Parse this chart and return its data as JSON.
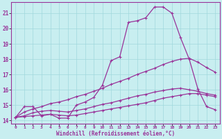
{
  "xlabel": "Windchill (Refroidissement éolien,°C)",
  "x_ticks": [
    0,
    1,
    2,
    3,
    4,
    5,
    6,
    7,
    8,
    9,
    10,
    11,
    12,
    13,
    14,
    15,
    16,
    17,
    18,
    19,
    20,
    21,
    22,
    23
  ],
  "ylim": [
    13.8,
    21.7
  ],
  "xlim": [
    -0.5,
    23.5
  ],
  "y_ticks": [
    14,
    15,
    16,
    17,
    18,
    19,
    20,
    21
  ],
  "background_color": "#c8eef0",
  "grid_color": "#a0d8dc",
  "line_color": "#993399",
  "line1_x": [
    0,
    1,
    2,
    3,
    4,
    5,
    6,
    7,
    8,
    9,
    10,
    11,
    12,
    13,
    14,
    15,
    16,
    17,
    18,
    19,
    20,
    21,
    22,
    23
  ],
  "line1_y": [
    14.2,
    14.9,
    14.9,
    14.3,
    14.4,
    14.15,
    14.15,
    15.0,
    15.2,
    15.5,
    16.3,
    17.9,
    18.15,
    20.4,
    20.5,
    20.7,
    21.4,
    21.4,
    21.0,
    19.4,
    18.0,
    16.05,
    14.9,
    14.7
  ],
  "line2_x": [
    0,
    1,
    2,
    3,
    4,
    5,
    6,
    7,
    8,
    9,
    10,
    11,
    12,
    13,
    14,
    15,
    16,
    17,
    18,
    19,
    20,
    21,
    22,
    23
  ],
  "line2_y": [
    14.2,
    14.55,
    14.75,
    14.9,
    15.1,
    15.2,
    15.35,
    15.55,
    15.7,
    15.9,
    16.1,
    16.35,
    16.55,
    16.75,
    17.0,
    17.2,
    17.4,
    17.65,
    17.85,
    18.0,
    18.05,
    17.8,
    17.45,
    17.15
  ],
  "line3_x": [
    0,
    1,
    2,
    3,
    4,
    5,
    6,
    7,
    8,
    9,
    10,
    11,
    12,
    13,
    14,
    15,
    16,
    17,
    18,
    19,
    20,
    21,
    22,
    23
  ],
  "line3_y": [
    14.2,
    14.25,
    14.3,
    14.35,
    14.4,
    14.35,
    14.3,
    14.35,
    14.45,
    14.55,
    14.65,
    14.75,
    14.85,
    14.95,
    15.05,
    15.15,
    15.3,
    15.45,
    15.55,
    15.65,
    15.75,
    15.75,
    15.65,
    15.55
  ],
  "line4_x": [
    0,
    1,
    2,
    3,
    4,
    5,
    6,
    7,
    8,
    9,
    10,
    11,
    12,
    13,
    14,
    15,
    16,
    17,
    18,
    19,
    20,
    21,
    22,
    23
  ],
  "line4_y": [
    14.2,
    14.3,
    14.5,
    14.6,
    14.65,
    14.6,
    14.55,
    14.65,
    14.75,
    14.9,
    15.05,
    15.15,
    15.3,
    15.45,
    15.6,
    15.7,
    15.85,
    15.95,
    16.05,
    16.1,
    16.0,
    15.9,
    15.75,
    15.65
  ]
}
